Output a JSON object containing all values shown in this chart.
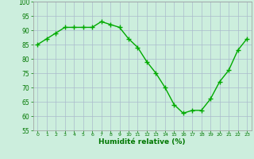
{
  "x": [
    0,
    1,
    2,
    3,
    4,
    5,
    6,
    7,
    8,
    9,
    10,
    11,
    12,
    13,
    14,
    15,
    16,
    17,
    18,
    19,
    20,
    21,
    22,
    23
  ],
  "y": [
    85,
    87,
    89,
    91,
    91,
    91,
    91,
    93,
    92,
    91,
    87,
    84,
    79,
    75,
    70,
    64,
    61,
    62,
    62,
    66,
    72,
    76,
    83,
    87
  ],
  "line_color": "#00aa00",
  "marker": "+",
  "marker_color": "#00aa00",
  "bg_color": "#cceedd",
  "grid_color": "#aabbcc",
  "xlabel": "Humidité relative (%)",
  "xlabel_color": "#007700",
  "tick_color": "#007700",
  "ylim": [
    55,
    100
  ],
  "yticks": [
    55,
    60,
    65,
    70,
    75,
    80,
    85,
    90,
    95,
    100
  ],
  "xticks": [
    0,
    1,
    2,
    3,
    4,
    5,
    6,
    7,
    8,
    9,
    10,
    11,
    12,
    13,
    14,
    15,
    16,
    17,
    18,
    19,
    20,
    21,
    22,
    23
  ],
  "linewidth": 1.0,
  "markersize": 4
}
